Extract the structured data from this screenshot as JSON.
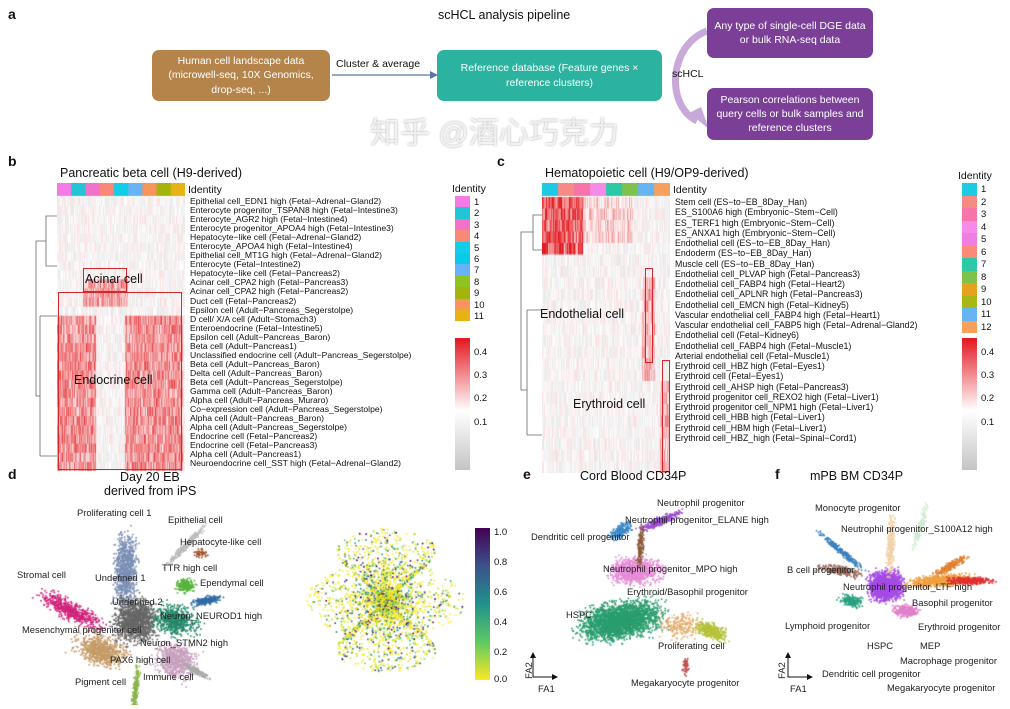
{
  "panel_a": {
    "label": "a",
    "title": "scHCL analysis pipeline",
    "source_box": "Human cell landscape data (microwell-seq, 10X Genomics, drop-seq, ...)",
    "arrow_label": "Cluster & average",
    "reference_box": "Reference database (Feature genes × reference clusters)",
    "query_box": "Any type of single-cell DGE data or bulk RNA-seq data",
    "method_label": "scHCL",
    "result_box": "Pearson correlations between query cells or bulk samples and reference clusters",
    "colors": {
      "source": "#b5844a",
      "reference": "#2bb39f",
      "query": "#7b3f98",
      "arrow": "#c9a9d9"
    }
  },
  "panel_b": {
    "label": "b",
    "title": "Pancreatic beta cell (H9-derived)",
    "identity_label": "Identity",
    "rows": [
      "Epithelial cell_EDN1 high (Fetal−Adrenal−Gland2)",
      "Enterocyte progenitor_TSPAN8 high (Fetal−Intestine3)",
      "Enterocyte_AGR2 high (Fetal−Intestine4)",
      "Enterocyte progenitor_APOA4 high (Fetal−Intestine3)",
      "Hepatocyte−like cell (Fetal−Adrenal−Gland2)",
      "Enterocyte_APOA4 high (Fetal−Intestine4)",
      "Epithelial cell_MT1G high (Fetal−Adrenal−Gland2)",
      "Enterocyte  (Fetal−Intestine2)",
      "Hepatocyte−like cell (Fetal−Pancreas2)",
      "Acinar cell_CPA2 high (Fetal−Pancreas3)",
      "Acinar cell_CPA2 high (Fetal−Pancreas2)",
      "Duct cell (Fetal−Pancreas2)",
      "Epsilon cell (Adult−Pancreas_Segerstolpe)",
      "D cell/ X/A cell (Adult−Stomach3)",
      "Enteroendocrine (Fetal−Intestine5)",
      "Epsilon cell (Adult−Pancreas_Baron)",
      "Beta cell (Adult−Pancreas1)",
      "Unclassified endocrine cell (Adult−Pancreas_Segerstolpe)",
      "Beta cell (Adult−Pancreas_Baron)",
      "Delta cell (Adult−Pancreas_Baron)",
      "Beta cell (Adult−Pancreas_Segerstolpe)",
      "Gamma cell (Adult−Pancreas_Baron)",
      "Alpha cell (Adult−Pancreas_Muraro)",
      "Co−expression cell (Adult−Pancreas_Segerstolpe)",
      "Alpha cell (Adult−Pancreas_Baron)",
      "Alpha cell (Adult−Pancreas_Segerstolpe)",
      "Endocrine cell (Fetal−Pancreas2)",
      "Endocrine cell (Fetal−Pancreas3)",
      "Alpha cell (Adult−Pancreas1)",
      "Neuroendocrine cell_SST high (Fetal−Adrenal−Gland2)"
    ],
    "highlight_labels": [
      "Acinar cell",
      "Endocrine cell"
    ],
    "identity_legend": {
      "title": "Identity",
      "items": [
        "1",
        "2",
        "3",
        "4",
        "5",
        "6",
        "7",
        "8",
        "9",
        "10",
        "11"
      ],
      "colors": [
        "#f47be6",
        "#22c4d6",
        "#f172c9",
        "#f98877",
        "#10cde8",
        "#08cbe9",
        "#66b3f5",
        "#8fc31f",
        "#a3b50c",
        "#f7955d",
        "#e8b114"
      ]
    },
    "colorbar": {
      "ticks": [
        "0.4",
        "0.3",
        "0.2",
        "0.1"
      ],
      "low": "#c4c4c4",
      "mid": "#ffffff",
      "high": "#e3161f"
    }
  },
  "panel_c": {
    "label": "c",
    "title": "Hematopoietic cell (H9/OP9-derived)",
    "identity_label": "Identity",
    "rows": [
      "Stem cell (ES−to−EB_8Day_Han)",
      "ES_S100A6 high (Embryonic−Stem−Cell)",
      "ES_TERF1 high (Embryonic−Stem−Cell)",
      "ES_ANXA1 high (Embryonic−Stem−Cell)",
      "Endothelial cell (ES−to−EB_8Day_Han)",
      "Endoderm (ES−to−EB_8Day_Han)",
      "Muscle cell (ES−to−EB_8Day_Han)",
      "Endothelial cell_PLVAP high (Fetal−Pancreas3)",
      "Endothelial cell_FABP4 high (Fetal−Heart2)",
      "Endothelial cell_APLNR high (Fetal−Pancreas3)",
      "Endothelial cell_EMCN high (Fetal−Kidney5)",
      "Vascular endothelial cell_FABP4 high (Fetal−Heart1)",
      "Vascular endothelial cell_FABP5 high (Fetal−Adrenal−Gland2)",
      "Endothelial cell (Fetal−Kidney6)",
      "Endothelial cell_FABP4 high (Fetal−Muscle1)",
      "Arterial endothelial cell (Fetal−Muscle1)",
      "Erythroid cell_HBZ high (Fetal−Eyes1)",
      "Erythroid cell (Fetal−Eyes1)",
      "Erythroid cell_AHSP high (Fetal−Pancreas3)",
      "Erythroid progenitor cell_REXO2 high (Fetal−Liver1)",
      "Erythroid progenitor cell_NPM1 high (Fetal−Liver1)",
      "Erythroid cell_HBB high (Fetal−Liver1)",
      "Erythroid cell_HBM high (Fetal−Liver1)",
      "Erythroid cell_HBZ_high (Fetal−Spinal−Cord1)"
    ],
    "highlight_labels": [
      "Endothelial cell",
      "Erythroid cell"
    ],
    "identity_legend": {
      "title": "Identity",
      "items": [
        "1",
        "2",
        "3",
        "4",
        "5",
        "6",
        "7",
        "8",
        "9",
        "10",
        "11",
        "12"
      ],
      "colors": [
        "#1ec9e3",
        "#f68b86",
        "#f774a8",
        "#f58ae8",
        "#f07de0",
        "#fb8b78",
        "#2cc9a7",
        "#7fc24b",
        "#e6a21f",
        "#a7b815",
        "#66b4f2",
        "#f7a05c"
      ]
    },
    "colorbar": {
      "ticks": [
        "0.4",
        "0.3",
        "0.2",
        "0.1"
      ],
      "low": "#c4c4c4",
      "mid": "#ffffff",
      "high": "#e3161f"
    }
  },
  "panel_d": {
    "label": "d",
    "title_line1": "Day 20 EB",
    "title_line2": "derived from iPS",
    "clusters": [
      "Proliferating cell 1",
      "Epithelial cell",
      "Hepatocyte-like cell",
      "TTR high cell",
      "Stromal cell",
      "Undefined 1",
      "Ependymal cell",
      "Undefined 2",
      "Neuron_NEUROD1 high",
      "Mesenchymal progenitor cell",
      "Neuron_STMN2 high",
      "PAX6 high cell",
      "Immune cell",
      "Pigment cell"
    ],
    "colorbar": {
      "ticks": [
        "1.0",
        "0.8",
        "0.6",
        "0.4",
        "0.2",
        "0.0"
      ],
      "colors": [
        "#440154",
        "#3b528b",
        "#21918c",
        "#5ec962",
        "#fde725"
      ]
    }
  },
  "panel_e": {
    "label": "e",
    "title": "Cord Blood CD34P",
    "clusters": [
      "Neutrophil progenitor",
      "Neutrophil progenitor_ELANE high",
      "Dendritic cell progenitor",
      "Neutrophil progenitor_MPO high",
      "Erythroid/Basophil progenitor",
      "HSPC",
      "Proliferating cell",
      "Megakaryocyte progenitor"
    ],
    "axis_x": "FA1",
    "axis_y": "FA2"
  },
  "panel_f": {
    "label": "f",
    "title": "mPB BM CD34P",
    "clusters": [
      "Monocyte progenitor",
      "Neutrophil progenitor_S100A12 high",
      "B cell progenitor",
      "Neutrophil progenitor_LTF high",
      "Basophil progenitor",
      "Lymphoid progenitor",
      "Erythroid progenitor",
      "HSPC",
      "MEP",
      "Macrophage progenitor",
      "Dendritic cell progenitor",
      "Megakaryocyte progenitor"
    ],
    "axis_x": "FA1",
    "axis_y": "FA2"
  },
  "watermark": "知乎 @酒心巧克力"
}
